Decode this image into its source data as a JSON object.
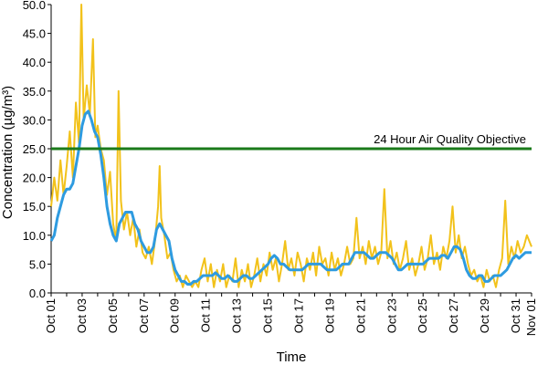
{
  "chart_data": {
    "type": "line",
    "title": "",
    "xlabel": "Time",
    "ylabel": "Concentration (µg/m³)",
    "ylim": [
      0,
      50
    ],
    "yticks": [
      "0.0",
      "5.0",
      "10.0",
      "15.0",
      "20.0",
      "25.0",
      "30.0",
      "35.0",
      "40.0",
      "45.0",
      "50.0"
    ],
    "xlim": [
      1,
      32
    ],
    "xticks": [
      {
        "day": 1,
        "label": "Oct 01"
      },
      {
        "day": 3,
        "label": "Oct 03"
      },
      {
        "day": 5,
        "label": "Oct 05"
      },
      {
        "day": 7,
        "label": "Oct 07"
      },
      {
        "day": 9,
        "label": "Oct 09"
      },
      {
        "day": 11,
        "label": "Oct 11"
      },
      {
        "day": 13,
        "label": "Oct 13"
      },
      {
        "day": 15,
        "label": "Oct 15"
      },
      {
        "day": 17,
        "label": "Oct 17"
      },
      {
        "day": 19,
        "label": "Oct 19"
      },
      {
        "day": 21,
        "label": "Oct 21"
      },
      {
        "day": 23,
        "label": "Oct 23"
      },
      {
        "day": 25,
        "label": "Oct 25"
      },
      {
        "day": 27,
        "label": "Oct 27"
      },
      {
        "day": 29,
        "label": "Oct 29"
      },
      {
        "day": 31,
        "label": "Oct 31"
      },
      {
        "day": 32,
        "label": "Nov 01"
      }
    ],
    "grid": false,
    "reference_line": {
      "label": "24 Hour Air Quality Objective",
      "value": 25,
      "color": "#1a7a1a"
    },
    "series": [
      {
        "color": "#f2c21b",
        "points": [
          [
            1.0,
            15
          ],
          [
            1.2,
            20
          ],
          [
            1.4,
            16
          ],
          [
            1.6,
            23
          ],
          [
            1.8,
            17
          ],
          [
            2.0,
            22
          ],
          [
            2.2,
            28
          ],
          [
            2.4,
            20
          ],
          [
            2.6,
            33
          ],
          [
            2.8,
            26
          ],
          [
            2.95,
            50
          ],
          [
            3.1,
            30
          ],
          [
            3.3,
            36
          ],
          [
            3.5,
            31
          ],
          [
            3.7,
            44
          ],
          [
            3.85,
            27
          ],
          [
            4.0,
            29
          ],
          [
            4.2,
            25
          ],
          [
            4.4,
            23
          ],
          [
            4.6,
            17
          ],
          [
            4.8,
            21
          ],
          [
            5.0,
            12
          ],
          [
            5.2,
            9
          ],
          [
            5.35,
            35
          ],
          [
            5.5,
            16
          ],
          [
            5.7,
            11
          ],
          [
            5.9,
            14
          ],
          [
            6.1,
            10
          ],
          [
            6.3,
            13
          ],
          [
            6.5,
            8
          ],
          [
            6.7,
            11
          ],
          [
            6.9,
            7
          ],
          [
            7.1,
            6
          ],
          [
            7.3,
            8
          ],
          [
            7.5,
            5
          ],
          [
            7.7,
            9
          ],
          [
            7.9,
            15
          ],
          [
            8.0,
            22
          ],
          [
            8.1,
            13
          ],
          [
            8.3,
            10
          ],
          [
            8.5,
            6
          ],
          [
            8.7,
            7
          ],
          [
            8.9,
            4
          ],
          [
            9.1,
            2
          ],
          [
            9.3,
            3
          ],
          [
            9.5,
            1
          ],
          [
            9.7,
            3
          ],
          [
            9.9,
            2
          ],
          [
            10.1,
            1
          ],
          [
            10.3,
            2
          ],
          [
            10.5,
            1
          ],
          [
            10.7,
            4
          ],
          [
            10.9,
            6
          ],
          [
            11.1,
            2
          ],
          [
            11.3,
            5
          ],
          [
            11.5,
            1
          ],
          [
            11.7,
            4
          ],
          [
            11.9,
            2
          ],
          [
            12.1,
            5
          ],
          [
            12.3,
            1
          ],
          [
            12.5,
            3
          ],
          [
            12.7,
            2
          ],
          [
            12.9,
            6
          ],
          [
            13.1,
            1
          ],
          [
            13.3,
            4
          ],
          [
            13.5,
            2
          ],
          [
            13.7,
            5
          ],
          [
            13.9,
            1
          ],
          [
            14.1,
            3
          ],
          [
            14.3,
            6
          ],
          [
            14.5,
            2
          ],
          [
            14.7,
            5
          ],
          [
            14.9,
            3
          ],
          [
            15.1,
            7
          ],
          [
            15.3,
            4
          ],
          [
            15.5,
            6
          ],
          [
            15.7,
            2
          ],
          [
            15.9,
            5
          ],
          [
            16.1,
            9
          ],
          [
            16.3,
            4
          ],
          [
            16.5,
            6
          ],
          [
            16.7,
            3
          ],
          [
            16.9,
            7
          ],
          [
            17.1,
            5
          ],
          [
            17.3,
            2
          ],
          [
            17.5,
            6
          ],
          [
            17.7,
            4
          ],
          [
            17.9,
            7
          ],
          [
            18.1,
            3
          ],
          [
            18.3,
            8
          ],
          [
            18.5,
            5
          ],
          [
            18.7,
            6
          ],
          [
            18.9,
            3
          ],
          [
            19.1,
            7
          ],
          [
            19.3,
            4
          ],
          [
            19.5,
            6
          ],
          [
            19.7,
            3
          ],
          [
            19.9,
            5
          ],
          [
            20.1,
            8
          ],
          [
            20.3,
            5
          ],
          [
            20.5,
            6
          ],
          [
            20.7,
            13
          ],
          [
            20.9,
            6
          ],
          [
            21.1,
            8
          ],
          [
            21.3,
            5
          ],
          [
            21.5,
            9
          ],
          [
            21.7,
            6
          ],
          [
            21.9,
            8
          ],
          [
            22.1,
            5
          ],
          [
            22.3,
            7
          ],
          [
            22.5,
            18
          ],
          [
            22.7,
            6
          ],
          [
            22.9,
            9
          ],
          [
            23.1,
            5
          ],
          [
            23.3,
            7
          ],
          [
            23.5,
            4
          ],
          [
            23.7,
            6
          ],
          [
            23.9,
            9
          ],
          [
            24.1,
            4
          ],
          [
            24.3,
            6
          ],
          [
            24.5,
            3
          ],
          [
            24.7,
            5
          ],
          [
            24.9,
            8
          ],
          [
            25.1,
            4
          ],
          [
            25.3,
            6
          ],
          [
            25.5,
            10
          ],
          [
            25.7,
            5
          ],
          [
            25.9,
            7
          ],
          [
            26.1,
            4
          ],
          [
            26.3,
            8
          ],
          [
            26.5,
            6
          ],
          [
            26.7,
            9
          ],
          [
            26.9,
            15
          ],
          [
            27.1,
            7
          ],
          [
            27.3,
            10
          ],
          [
            27.5,
            6
          ],
          [
            27.7,
            8
          ],
          [
            27.9,
            5
          ],
          [
            28.1,
            3
          ],
          [
            28.3,
            4
          ],
          [
            28.5,
            2
          ],
          [
            28.7,
            3
          ],
          [
            28.9,
            1
          ],
          [
            29.1,
            4
          ],
          [
            29.3,
            2
          ],
          [
            29.5,
            3
          ],
          [
            29.7,
            1
          ],
          [
            29.9,
            4
          ],
          [
            30.1,
            6
          ],
          [
            30.3,
            16
          ],
          [
            30.5,
            5
          ],
          [
            30.7,
            8
          ],
          [
            30.9,
            6
          ],
          [
            31.1,
            9
          ],
          [
            31.3,
            7
          ],
          [
            31.5,
            8
          ],
          [
            31.7,
            10
          ],
          [
            32.0,
            8
          ]
        ]
      },
      {
        "color": "#2e9be0",
        "points": [
          [
            1.0,
            9
          ],
          [
            1.2,
            10
          ],
          [
            1.4,
            13
          ],
          [
            1.6,
            15
          ],
          [
            1.8,
            17
          ],
          [
            2.0,
            18
          ],
          [
            2.2,
            18
          ],
          [
            2.4,
            19
          ],
          [
            2.6,
            22
          ],
          [
            2.8,
            25
          ],
          [
            3.0,
            29
          ],
          [
            3.2,
            31
          ],
          [
            3.4,
            31.5
          ],
          [
            3.6,
            30
          ],
          [
            3.8,
            28
          ],
          [
            4.0,
            27
          ],
          [
            4.2,
            24
          ],
          [
            4.4,
            20
          ],
          [
            4.6,
            15
          ],
          [
            4.8,
            12
          ],
          [
            5.0,
            10
          ],
          [
            5.2,
            9
          ],
          [
            5.4,
            12
          ],
          [
            5.6,
            13
          ],
          [
            5.8,
            14
          ],
          [
            6.0,
            14
          ],
          [
            6.2,
            14
          ],
          [
            6.4,
            12
          ],
          [
            6.6,
            11
          ],
          [
            6.8,
            9
          ],
          [
            7.0,
            8
          ],
          [
            7.2,
            7
          ],
          [
            7.4,
            7
          ],
          [
            7.6,
            8
          ],
          [
            7.8,
            11
          ],
          [
            8.0,
            12
          ],
          [
            8.2,
            11
          ],
          [
            8.4,
            10
          ],
          [
            8.6,
            9
          ],
          [
            8.8,
            6
          ],
          [
            9.0,
            4
          ],
          [
            9.2,
            3
          ],
          [
            9.4,
            2
          ],
          [
            9.6,
            2
          ],
          [
            9.8,
            1.5
          ],
          [
            10.0,
            1.5
          ],
          [
            10.2,
            2
          ],
          [
            10.4,
            2
          ],
          [
            10.6,
            2.5
          ],
          [
            10.8,
            3
          ],
          [
            11.0,
            3
          ],
          [
            11.2,
            3
          ],
          [
            11.4,
            3
          ],
          [
            11.6,
            3.5
          ],
          [
            11.8,
            3
          ],
          [
            12.0,
            2.5
          ],
          [
            12.2,
            2.5
          ],
          [
            12.4,
            3
          ],
          [
            12.6,
            2.5
          ],
          [
            12.8,
            2
          ],
          [
            13.0,
            2
          ],
          [
            13.2,
            2.5
          ],
          [
            13.4,
            3
          ],
          [
            13.6,
            3
          ],
          [
            13.8,
            2.5
          ],
          [
            14.0,
            2.5
          ],
          [
            14.2,
            3
          ],
          [
            14.4,
            3.5
          ],
          [
            14.6,
            4
          ],
          [
            14.8,
            4.5
          ],
          [
            15.0,
            5
          ],
          [
            15.2,
            6
          ],
          [
            15.4,
            6.5
          ],
          [
            15.6,
            6
          ],
          [
            15.8,
            5
          ],
          [
            16.0,
            5
          ],
          [
            16.2,
            4.5
          ],
          [
            16.4,
            4
          ],
          [
            16.6,
            4
          ],
          [
            16.8,
            4
          ],
          [
            17.0,
            4
          ],
          [
            17.2,
            4
          ],
          [
            17.4,
            4.5
          ],
          [
            17.6,
            5
          ],
          [
            17.8,
            5
          ],
          [
            18.0,
            5
          ],
          [
            18.2,
            5
          ],
          [
            18.4,
            5
          ],
          [
            18.6,
            4.5
          ],
          [
            18.8,
            4
          ],
          [
            19.0,
            4
          ],
          [
            19.2,
            4
          ],
          [
            19.4,
            4
          ],
          [
            19.6,
            4.5
          ],
          [
            19.8,
            5
          ],
          [
            20.0,
            5
          ],
          [
            20.2,
            5
          ],
          [
            20.4,
            6
          ],
          [
            20.6,
            7
          ],
          [
            20.8,
            7
          ],
          [
            21.0,
            7
          ],
          [
            21.2,
            7
          ],
          [
            21.4,
            6.5
          ],
          [
            21.6,
            6
          ],
          [
            21.8,
            6
          ],
          [
            22.0,
            6.5
          ],
          [
            22.2,
            7
          ],
          [
            22.4,
            7
          ],
          [
            22.6,
            7
          ],
          [
            22.8,
            6.5
          ],
          [
            23.0,
            6
          ],
          [
            23.2,
            5
          ],
          [
            23.4,
            4
          ],
          [
            23.6,
            4
          ],
          [
            23.8,
            4.5
          ],
          [
            24.0,
            5
          ],
          [
            24.2,
            5
          ],
          [
            24.4,
            5
          ],
          [
            24.6,
            5
          ],
          [
            24.8,
            5
          ],
          [
            25.0,
            5
          ],
          [
            25.2,
            5.5
          ],
          [
            25.4,
            6
          ],
          [
            25.6,
            6
          ],
          [
            25.8,
            6
          ],
          [
            26.0,
            6
          ],
          [
            26.2,
            6.5
          ],
          [
            26.4,
            6.5
          ],
          [
            26.6,
            6
          ],
          [
            26.8,
            7
          ],
          [
            27.0,
            8
          ],
          [
            27.2,
            8
          ],
          [
            27.4,
            7.5
          ],
          [
            27.6,
            6
          ],
          [
            27.8,
            4
          ],
          [
            28.0,
            3
          ],
          [
            28.2,
            2.5
          ],
          [
            28.4,
            2.5
          ],
          [
            28.6,
            3
          ],
          [
            28.8,
            3
          ],
          [
            29.0,
            2
          ],
          [
            29.2,
            2
          ],
          [
            29.4,
            2.5
          ],
          [
            29.6,
            3
          ],
          [
            29.8,
            3
          ],
          [
            30.0,
            3
          ],
          [
            30.2,
            3.5
          ],
          [
            30.4,
            4
          ],
          [
            30.6,
            5
          ],
          [
            30.8,
            6
          ],
          [
            31.0,
            6.5
          ],
          [
            31.2,
            6
          ],
          [
            31.4,
            6.5
          ],
          [
            31.6,
            7
          ],
          [
            32.0,
            7
          ]
        ]
      }
    ]
  }
}
